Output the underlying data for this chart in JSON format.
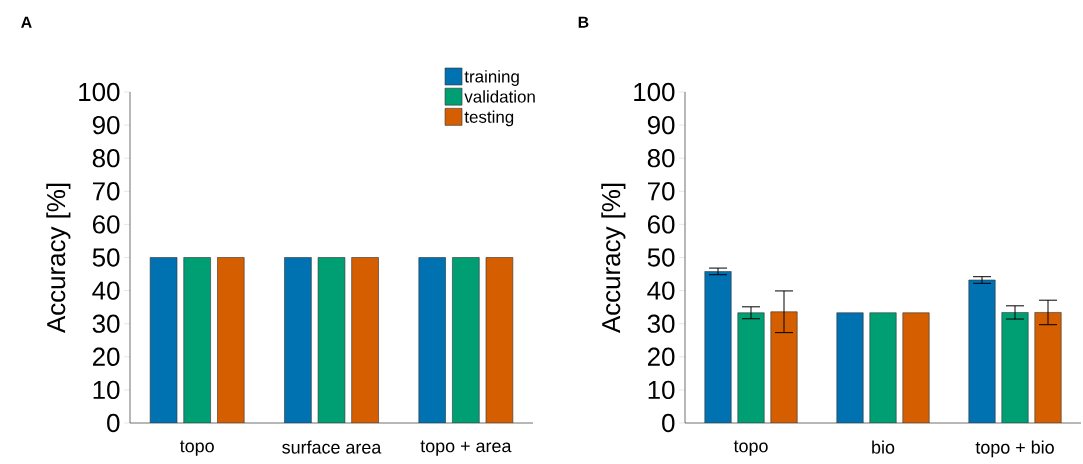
{
  "chart_data": [
    {
      "type": "bar",
      "title": "A",
      "ylabel": "Accuracy [%]",
      "categories": [
        "topo",
        "surface area",
        "topo + area"
      ],
      "ylim": [
        0,
        100
      ],
      "yticks": [
        0,
        10,
        20,
        30,
        40,
        50,
        60,
        70,
        80,
        90,
        100
      ],
      "legend": "top right",
      "series": [
        {
          "name": "training",
          "color": "#0072b2",
          "values": [
            50,
            50,
            50
          ]
        },
        {
          "name": "validation",
          "color": "#009e73",
          "values": [
            50,
            50,
            50
          ]
        },
        {
          "name": "testing",
          "color": "#d55e00",
          "values": [
            50,
            50,
            50
          ]
        }
      ]
    },
    {
      "type": "bar",
      "title": "B",
      "ylabel": "Accuracy [%]",
      "categories": [
        "topo",
        "bio",
        "topo + bio"
      ],
      "ylim": [
        0,
        100
      ],
      "yticks": [
        0,
        10,
        20,
        30,
        40,
        50,
        60,
        70,
        80,
        90,
        100
      ],
      "series": [
        {
          "color": "#0072b2",
          "values": [
            45.8,
            33.3,
            43.2
          ],
          "errors": [
            1,
            null,
            1
          ]
        },
        {
          "color": "#009e73",
          "values": [
            33.3,
            33.3,
            33.4
          ],
          "errors": [
            1.8,
            null,
            2
          ]
        },
        {
          "color": "#d55e00",
          "values": [
            33.6,
            33.3,
            33.4
          ],
          "errors": [
            6.3,
            null,
            3.7
          ]
        }
      ]
    }
  ]
}
